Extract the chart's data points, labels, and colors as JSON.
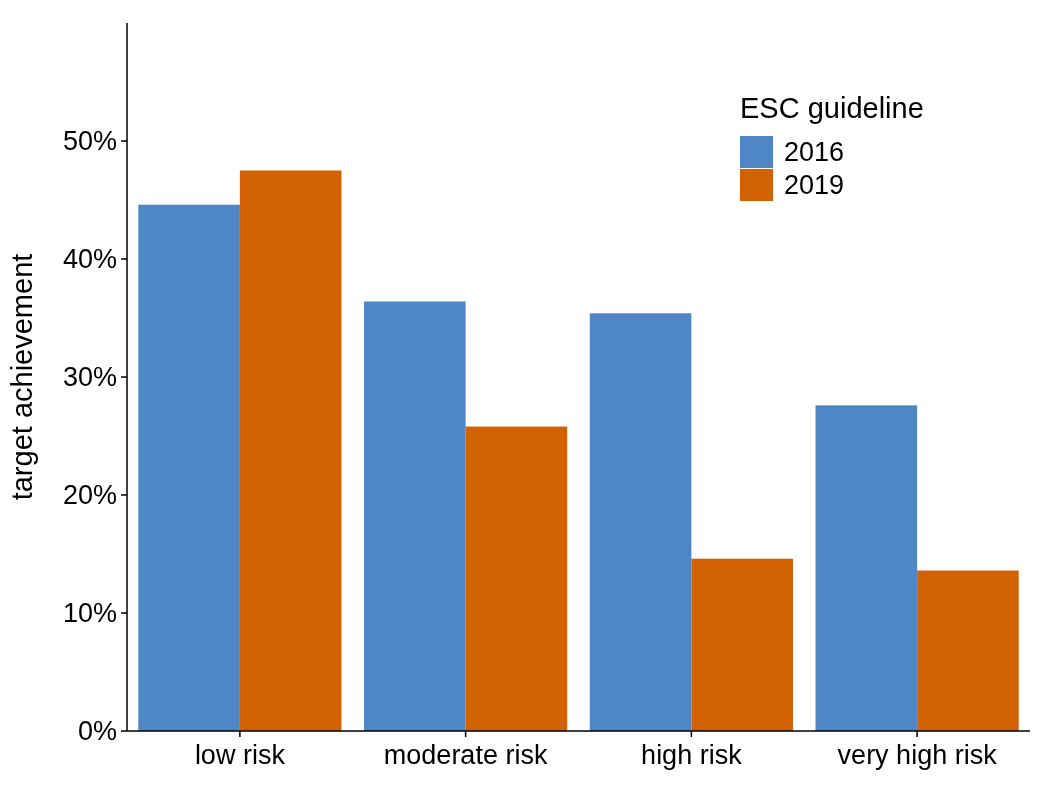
{
  "chart_data": {
    "type": "bar",
    "ylabel": "target achievement",
    "legend_title": "ESC guideline",
    "legend": "top right",
    "grid": false,
    "categories": [
      "low risk",
      "moderate risk",
      "high risk",
      "very high risk"
    ],
    "series": [
      {
        "name": "2016",
        "color": "#4f86c6",
        "values": [
          44.6,
          36.4,
          35.4,
          27.6
        ]
      },
      {
        "name": "2019",
        "color": "#d16103",
        "values": [
          47.5,
          25.8,
          14.6,
          13.6
        ]
      }
    ],
    "ylim": [
      0,
      60
    ],
    "yticks": [
      {
        "value": 0,
        "label": "0%"
      },
      {
        "value": 10,
        "label": "10%"
      },
      {
        "value": 20,
        "label": "20%"
      },
      {
        "value": 30,
        "label": "30%"
      },
      {
        "value": 40,
        "label": "40%"
      },
      {
        "value": 50,
        "label": "50%"
      }
    ]
  }
}
